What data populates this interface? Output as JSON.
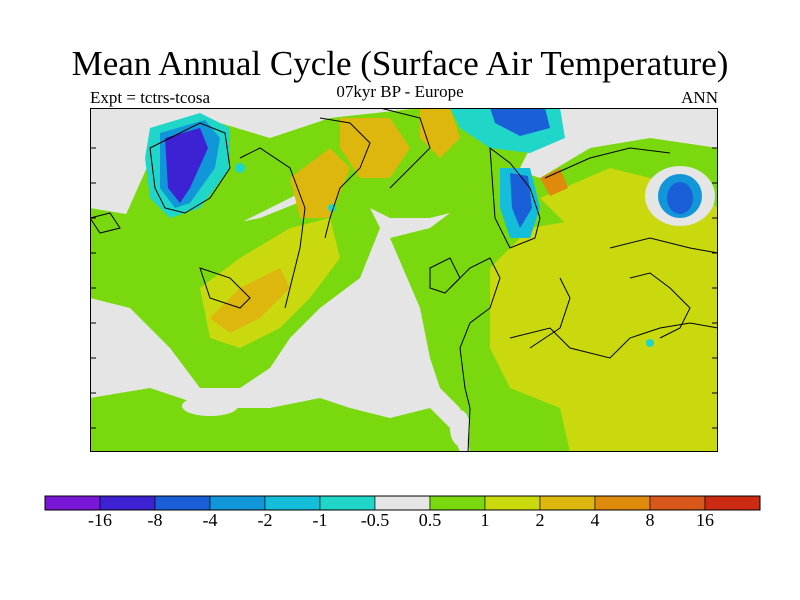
{
  "title": "Mean Annual Cycle (Surface Air Temperature)",
  "subtitle_left": "Expt = tctrs-tcosa",
  "subtitle_center": "07kyr BP - Europe",
  "subtitle_right": "ANN",
  "colorbar": {
    "colors": [
      "#7a16d6",
      "#3c22d2",
      "#1a5fd8",
      "#1196d9",
      "#14bdd9",
      "#1fd6c8",
      "#e5e5e5",
      "#79d90e",
      "#c9d90e",
      "#ddb70d",
      "#de8a0c",
      "#d8581b",
      "#cc2a12"
    ],
    "labels": [
      "-16",
      "-8",
      "-4",
      "-2",
      "-1",
      "-0.5",
      "0.5",
      "1",
      "2",
      "4",
      "8",
      "16"
    ]
  },
  "map_colors": {
    "ocean_neutral": "#e5e5e5",
    "warm_small": "#79d90e",
    "warm_mid": "#c9d90e",
    "warm_high": "#ddb70d",
    "warm_higher": "#de8a0c",
    "warm_max": "#d8581b",
    "cool_small": "#1fd6c8",
    "cool_mid": "#14bdd9",
    "cool_more": "#1196d9",
    "cool_strong": "#1a5fd8",
    "cool_max": "#3c22d2"
  }
}
